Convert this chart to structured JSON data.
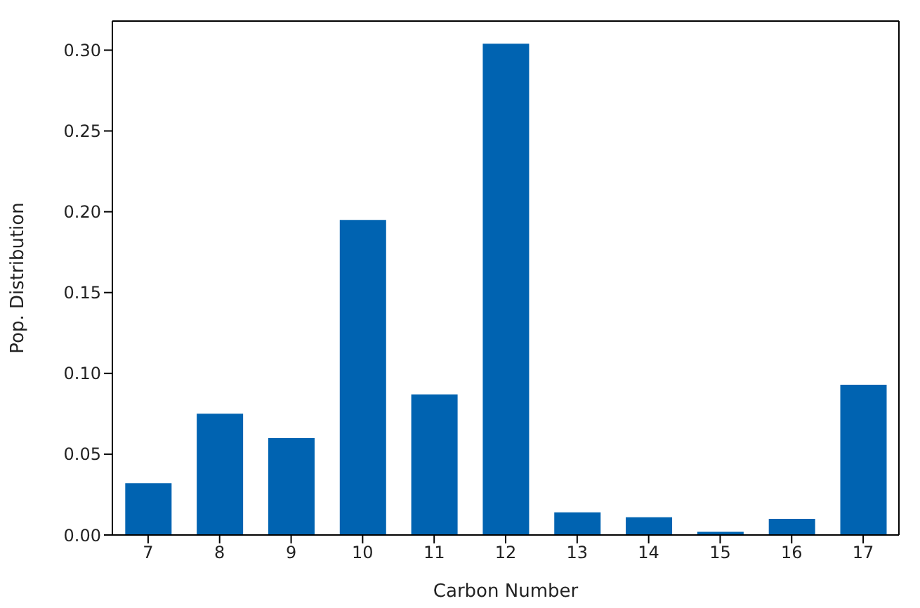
{
  "chart_data": {
    "type": "bar",
    "xlabel": "Carbon Number",
    "ylabel": "Pop. Distribution",
    "categories": [
      "7",
      "8",
      "9",
      "10",
      "11",
      "12",
      "13",
      "14",
      "15",
      "16",
      "17"
    ],
    "values": [
      0.032,
      0.075,
      0.06,
      0.195,
      0.087,
      0.304,
      0.014,
      0.011,
      0.002,
      0.01,
      0.093
    ],
    "color": "#0063b1",
    "ylim": [
      0,
      0.318
    ],
    "yticks": [
      {
        "value": 0,
        "label": "0.00"
      },
      {
        "value": 0.05,
        "label": "0.05"
      },
      {
        "value": 0.1,
        "label": "0.10"
      },
      {
        "value": 0.15,
        "label": "0.15"
      },
      {
        "value": 0.2,
        "label": "0.20"
      },
      {
        "value": 0.25,
        "label": "0.25"
      },
      {
        "value": 0.3,
        "label": "0.30"
      }
    ],
    "grid": false
  }
}
